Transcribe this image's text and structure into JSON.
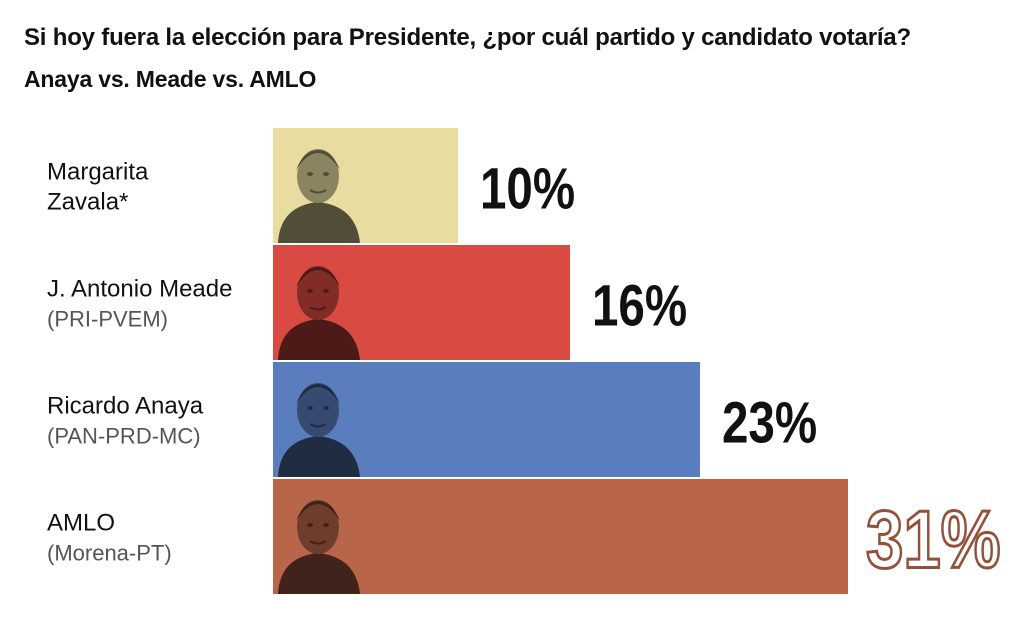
{
  "header": {
    "title": "Si hoy fuera la elección para Presidente, ¿por cuál partido y candidato votaría?",
    "subtitle": "Anaya vs. Meade vs. AMLO"
  },
  "chart_data": {
    "type": "bar",
    "orientation": "horizontal",
    "title": "Si hoy fuera la elección para Presidente, ¿por cuál partido y candidato votaría?",
    "subtitle": "Anaya vs. Meade vs. AMLO",
    "xlim": [
      0,
      31
    ],
    "categories": [
      {
        "name": [
          "Margarita",
          "Zavala*"
        ],
        "party": "",
        "value": 10,
        "label": "10%",
        "color": "#e8dca0",
        "photo": "margarita-zavala-portrait"
      },
      {
        "name": [
          "J. Antonio Meade"
        ],
        "party": "(PRI-PVEM)",
        "value": 16,
        "label": "16%",
        "color": "#d94a43",
        "photo": "antonio-meade-portrait"
      },
      {
        "name": [
          "Ricardo Anaya"
        ],
        "party": "(PAN-PRD-MC)",
        "value": 23,
        "label": "23%",
        "color": "#5a7dbd",
        "photo": "ricardo-anaya-portrait"
      },
      {
        "name": [
          "AMLO"
        ],
        "party": "(Morena-PT)",
        "value": 31,
        "label": "31%",
        "color": "#b8654a",
        "photo": "amlo-portrait"
      }
    ]
  }
}
